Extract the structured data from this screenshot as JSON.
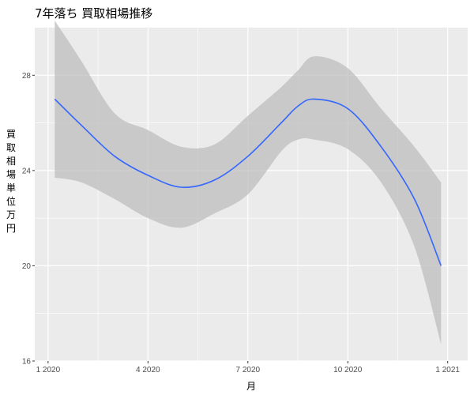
{
  "chart_data": {
    "type": "line",
    "title": "7年落ち 買取相場推移",
    "xlabel": "月",
    "ylabel": "買取相場\n単位\n万円",
    "x_tick_labels": [
      "1 2020",
      "4 2020",
      "7 2020",
      "10 2020",
      "1 2021"
    ],
    "x_tick_values": [
      0,
      3,
      6,
      9,
      12
    ],
    "y_tick_labels": [
      "16",
      "20",
      "24",
      "28"
    ],
    "y_tick_values": [
      16,
      20,
      24,
      28
    ],
    "xlim": [
      -0.4,
      12.6
    ],
    "ylim": [
      16,
      30
    ],
    "grid": true,
    "colors": {
      "panel": "#ebebeb",
      "grid": "#ffffff",
      "line": "#3366ff",
      "band": "#bebebe"
    },
    "series": [
      {
        "x": [
          0.2,
          1,
          2,
          3,
          4,
          5,
          6,
          7,
          7.5,
          8,
          9,
          10,
          11,
          11.8
        ],
        "y": [
          27.0,
          25.9,
          24.6,
          23.8,
          23.3,
          23.6,
          24.6,
          26.0,
          26.7,
          27.0,
          26.6,
          25.0,
          22.8,
          20.0
        ],
        "lower": [
          23.7,
          23.5,
          22.8,
          22.0,
          21.6,
          22.2,
          23.0,
          24.8,
          25.3,
          25.3,
          24.9,
          23.5,
          20.8,
          16.7
        ],
        "upper": [
          30.3,
          28.6,
          26.4,
          25.7,
          25.0,
          25.1,
          26.3,
          27.5,
          28.2,
          28.8,
          28.3,
          26.6,
          25.0,
          23.5
        ]
      }
    ]
  }
}
